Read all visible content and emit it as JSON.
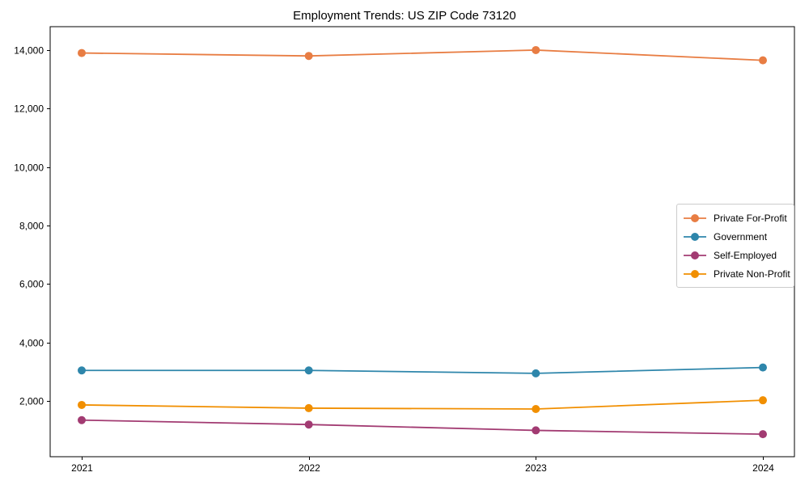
{
  "chart_data": {
    "type": "line",
    "title": "Employment Trends: US ZIP Code 73120",
    "xlabel": "",
    "ylabel": "",
    "x": [
      "2021",
      "2022",
      "2023",
      "2024"
    ],
    "series": [
      {
        "name": "Private For-Profit",
        "color": "#E87D43",
        "values": [
          13900,
          13800,
          14000,
          13650
        ]
      },
      {
        "name": "Government",
        "color": "#2E86AB",
        "values": [
          3050,
          3050,
          2950,
          3150
        ]
      },
      {
        "name": "Self-Employed",
        "color": "#A23B72",
        "values": [
          1350,
          1200,
          1000,
          870
        ]
      },
      {
        "name": "Private Non-Profit",
        "color": "#F18F01",
        "values": [
          1870,
          1760,
          1730,
          2030
        ]
      }
    ],
    "yticks": [
      2000,
      4000,
      6000,
      8000,
      10000,
      12000,
      14000
    ],
    "ytick_labels": [
      "2,000",
      "4,000",
      "6,000",
      "8,000",
      "10,000",
      "12,000",
      "14,000"
    ],
    "ylim": [
      100,
      14800
    ],
    "grid": false,
    "legend_position": "center-right",
    "axis_color": "#000000",
    "background_color": "#ffffff"
  }
}
